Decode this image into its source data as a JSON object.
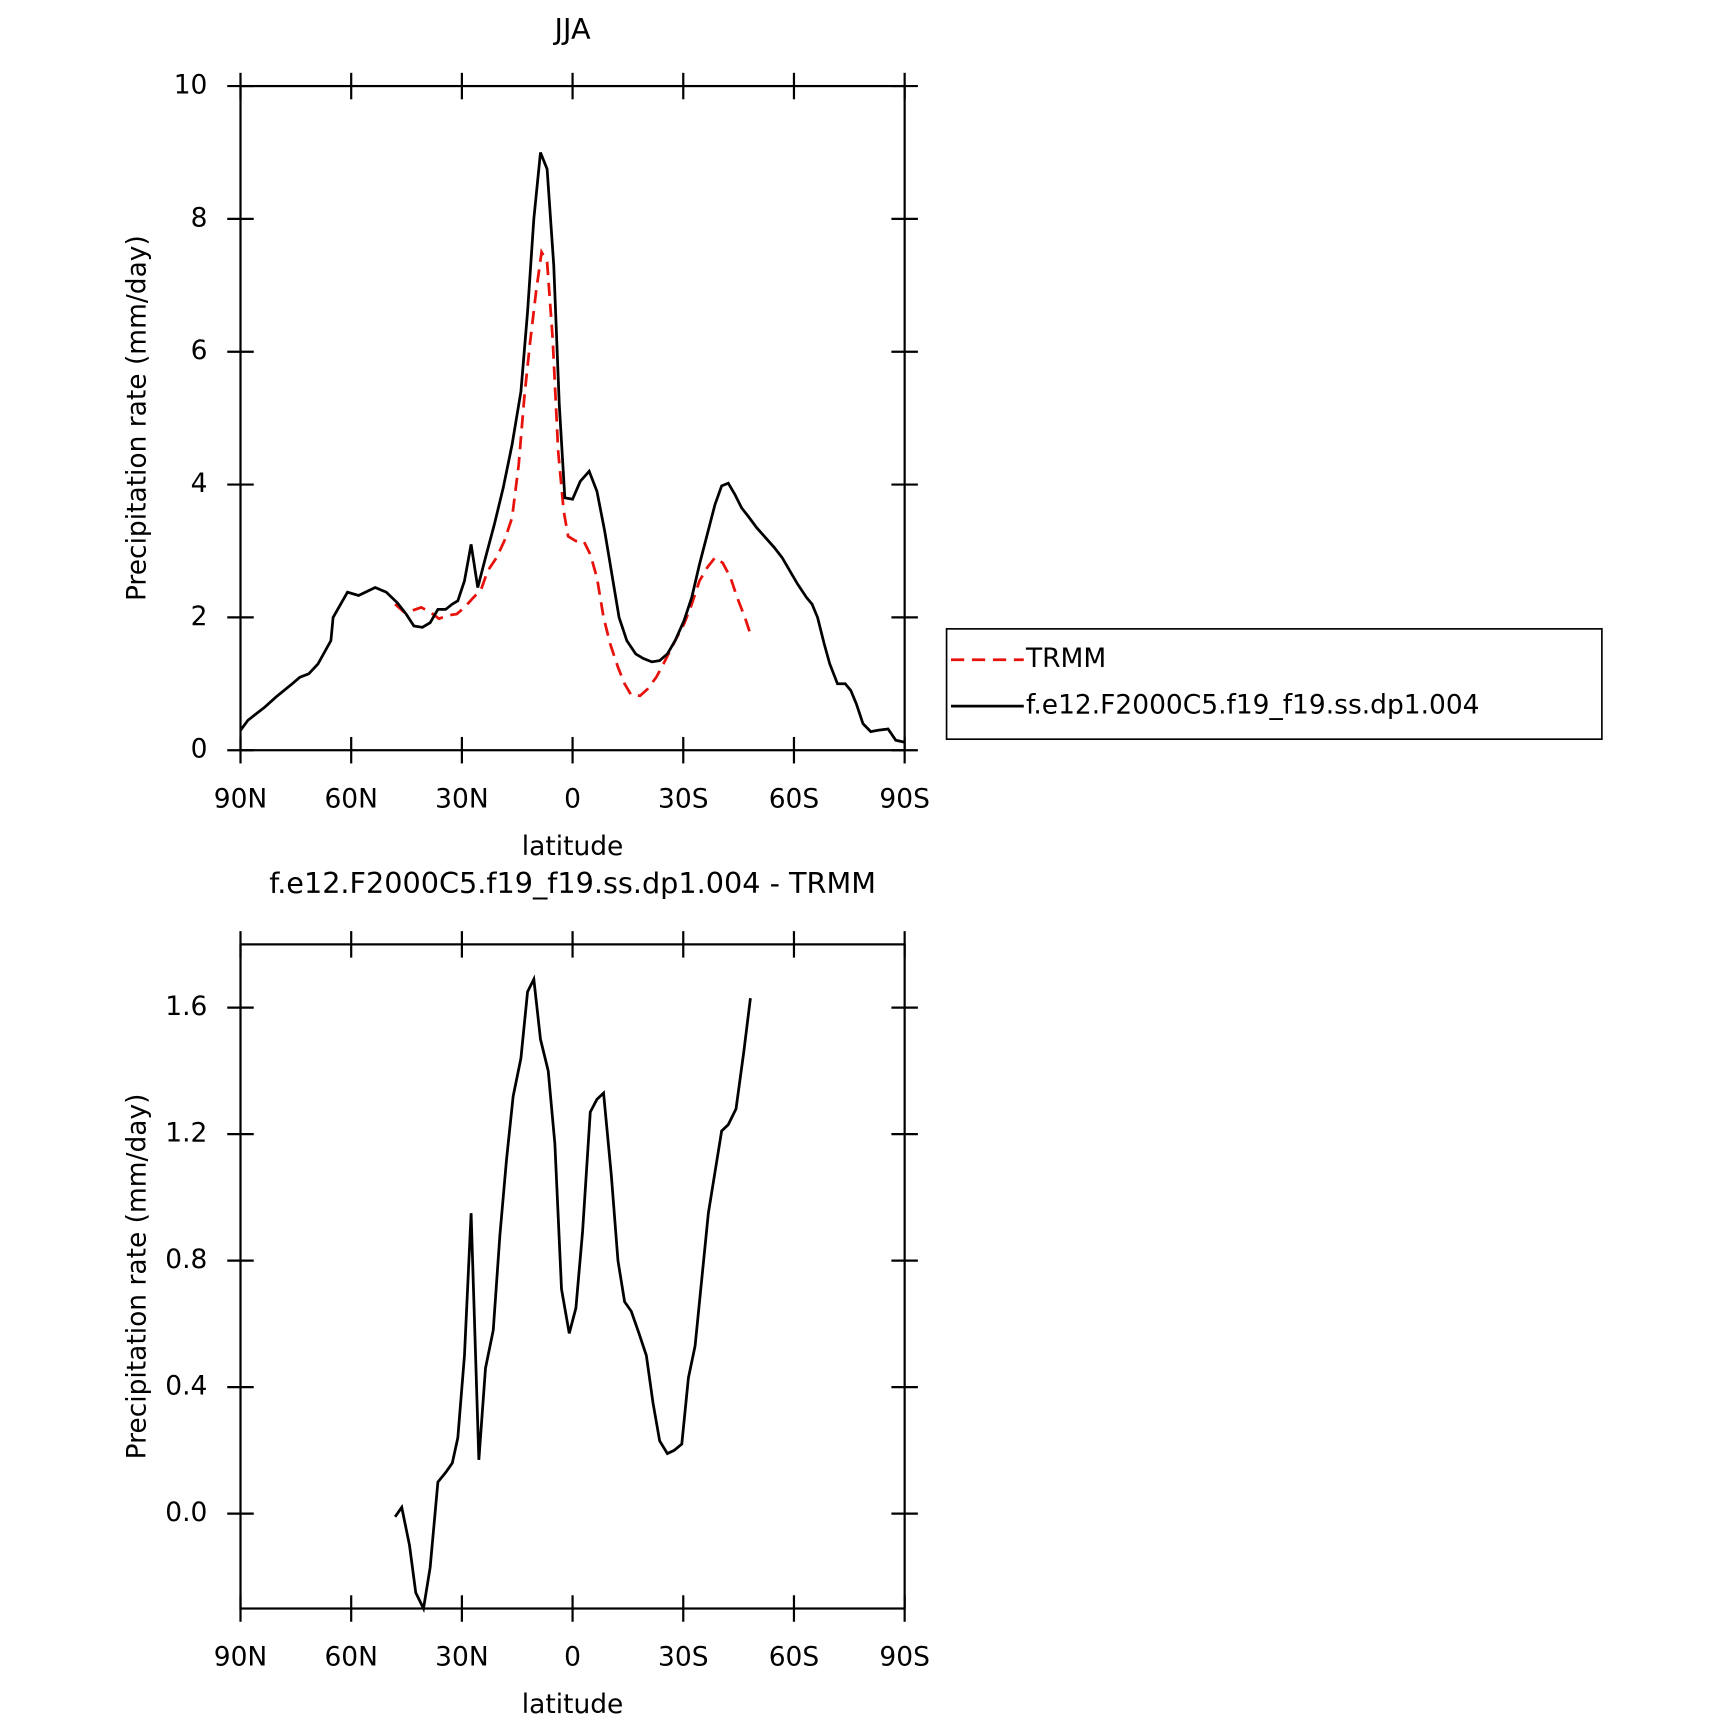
{
  "chart_data": [
    {
      "type": "line",
      "title": "JJA",
      "x_label": "latitude",
      "y_label": "Precipitation rate (mm/day)",
      "xlim": [
        90,
        -90
      ],
      "xticks": [
        {
          "value": 90,
          "label": "90N"
        },
        {
          "value": 60,
          "label": "60N"
        },
        {
          "value": 30,
          "label": "30N"
        },
        0,
        {
          "value": -30,
          "label": "30S"
        },
        {
          "value": -60,
          "label": "60S"
        },
        {
          "value": -90,
          "label": "90S"
        }
      ],
      "ylim": [
        0,
        10
      ],
      "yticks": [
        0,
        2,
        4,
        6,
        8,
        10
      ],
      "legend": "right",
      "series": [
        {
          "name": "TRMM",
          "color": "#e8120c",
          "line_style": "dashed",
          "x": [
            48.1,
            45.7,
            43.6,
            41,
            38.6,
            36.2,
            33.8,
            31.4,
            29.3,
            27.2,
            24.8,
            23,
            20.6,
            18.5,
            16.4,
            14.6,
            13.1,
            11.6,
            9.9,
            8.4,
            6.9,
            5.4,
            3.9,
            2.4,
            1.2,
            -0.9,
            -3,
            -4.8,
            -6.6,
            -8.4,
            -10.2,
            -12.3,
            -14.1,
            -15.9,
            -18.3,
            -20.3,
            -22.7,
            -25.1,
            -27.8,
            -30.2,
            -32,
            -34.4,
            -36.5,
            -38.6,
            -40.7,
            -42.8,
            -44.6,
            -46.7,
            -48.2
          ],
          "values": [
            2.2,
            2.08,
            2.1,
            2.15,
            2.08,
            1.98,
            2.03,
            2.05,
            2.15,
            2.28,
            2.42,
            2.7,
            2.9,
            3.15,
            3.5,
            4.3,
            5.3,
            6.1,
            6.9,
            7.5,
            7.35,
            6.2,
            4.5,
            3.6,
            3.22,
            3.15,
            3.15,
            2.95,
            2.6,
            2.0,
            1.6,
            1.25,
            1.0,
            0.83,
            0.82,
            0.92,
            1.1,
            1.35,
            1.65,
            1.9,
            2.15,
            2.55,
            2.75,
            2.9,
            2.82,
            2.6,
            2.3,
            2.0,
            1.75
          ]
        },
        {
          "name": "f.e12.F2000C5.f19_f19.ss.dp1.004",
          "color": "#000000",
          "line_style": "solid",
          "x": [
            90,
            88,
            83.4,
            80.4,
            76,
            73.9,
            71.5,
            69,
            65.5,
            64.9,
            61,
            58,
            53.5,
            50.5,
            47.5,
            45.1,
            43,
            40.7,
            38.6,
            36.5,
            34.4,
            32.6,
            31.1,
            29.3,
            27.5,
            25.7,
            23.6,
            21.2,
            18.8,
            16.4,
            14,
            12.2,
            10.5,
            8.7,
            6.9,
            5.1,
            3.6,
            2.1,
            0,
            -2.1,
            -4.5,
            -6.6,
            -8.7,
            -10.8,
            -12.6,
            -14.7,
            -17.1,
            -19.2,
            -21.5,
            -23.6,
            -25.7,
            -27.8,
            -30.2,
            -32.3,
            -34.4,
            -36.5,
            -38.6,
            -40.4,
            -42.2,
            -44,
            -45.8,
            -47.9,
            -49.9,
            -52.3,
            -54.7,
            -56.8,
            -58.9,
            -61,
            -63.4,
            -64.9,
            -66.4,
            -68.2,
            -69.7,
            -71.8,
            -73.9,
            -75.4,
            -76.9,
            -78.7,
            -80.8,
            -82.8,
            -85.5,
            -87.6,
            -90
          ],
          "values": [
            0.3,
            0.45,
            0.65,
            0.8,
            1.0,
            1.1,
            1.15,
            1.3,
            1.65,
            2.0,
            2.38,
            2.33,
            2.45,
            2.38,
            2.22,
            2.05,
            1.87,
            1.85,
            1.92,
            2.12,
            2.12,
            2.2,
            2.25,
            2.55,
            3.1,
            2.45,
            2.9,
            3.4,
            3.95,
            4.6,
            5.4,
            6.6,
            8.0,
            9.0,
            8.75,
            7.3,
            5.2,
            3.8,
            3.78,
            4.05,
            4.2,
            3.9,
            3.3,
            2.6,
            2.0,
            1.65,
            1.45,
            1.38,
            1.33,
            1.35,
            1.45,
            1.65,
            1.95,
            2.3,
            2.8,
            3.25,
            3.7,
            3.98,
            4.02,
            3.85,
            3.65,
            3.5,
            3.35,
            3.2,
            3.05,
            2.9,
            2.7,
            2.5,
            2.3,
            2.2,
            2.0,
            1.6,
            1.3,
            1.0,
            1.0,
            0.9,
            0.7,
            0.4,
            0.28,
            0.3,
            0.32,
            0.15,
            0.12
          ]
        }
      ]
    },
    {
      "type": "line",
      "title": "f.e12.F2000C5.f19_f19.ss.dp1.004 - TRMM",
      "x_label": "latitude",
      "y_label": "Precipitation rate (mm/day)",
      "xlim": [
        90,
        -90
      ],
      "xticks": [
        {
          "value": 90,
          "label": "90N"
        },
        {
          "value": 60,
          "label": "60N"
        },
        {
          "value": 30,
          "label": "30N"
        },
        0,
        {
          "value": -30,
          "label": "30S"
        },
        {
          "value": -60,
          "label": "60S"
        },
        {
          "value": -90,
          "label": "90S"
        }
      ],
      "ylim": [
        -0.3,
        1.8
      ],
      "yticks": [
        {
          "value": 0,
          "label": "0.0"
        },
        0.4,
        0.8,
        1.2,
        1.6
      ],
      "series": [
        {
          "color": "#000000",
          "line_style": "solid",
          "x": [
            48.1,
            46.3,
            44.2,
            42.5,
            40.4,
            38.6,
            36.5,
            34.4,
            32.6,
            31.1,
            29.3,
            27.5,
            25.4,
            23.6,
            21.5,
            19.7,
            17.9,
            16.1,
            14,
            12.2,
            10.5,
            8.7,
            6.6,
            4.8,
            3,
            0.9,
            -0.9,
            -2.7,
            -4.8,
            -6.6,
            -8.4,
            -10.5,
            -12.3,
            -14.1,
            -15.9,
            -18,
            -20,
            -21.8,
            -23.6,
            -25.7,
            -27.5,
            -29.6,
            -31.4,
            -33.2,
            -35,
            -36.8,
            -38.6,
            -40.4,
            -42.2,
            -44.3,
            -46.4,
            -48.2
          ],
          "values": [
            -0.01,
            0.02,
            -0.1,
            -0.25,
            -0.3,
            -0.17,
            0.1,
            0.13,
            0.16,
            0.24,
            0.5,
            0.95,
            0.17,
            0.46,
            0.58,
            0.88,
            1.12,
            1.32,
            1.44,
            1.65,
            1.69,
            1.5,
            1.4,
            1.17,
            0.71,
            0.57,
            0.65,
            0.89,
            1.27,
            1.31,
            1.33,
            1.07,
            0.8,
            0.67,
            0.64,
            0.57,
            0.5,
            0.35,
            0.23,
            0.19,
            0.2,
            0.22,
            0.43,
            0.53,
            0.74,
            0.95,
            1.08,
            1.21,
            1.23,
            1.28,
            1.46,
            1.63
          ]
        }
      ]
    }
  ]
}
